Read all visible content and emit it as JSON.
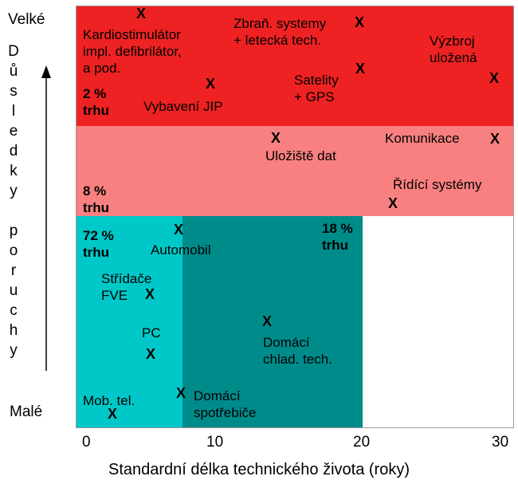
{
  "y_axis": {
    "top_label": "Velké",
    "bottom_label": "Malé",
    "vertical_letters": [
      "D",
      "ů",
      "s",
      "l",
      "e",
      "d",
      "k",
      "y",
      "",
      "p",
      "o",
      "r",
      "u",
      "c",
      "h",
      "y"
    ]
  },
  "x_axis": {
    "title": "Standardní délka technického života (roky)",
    "ticks": [
      "0",
      "10",
      "20",
      "30"
    ]
  },
  "zones": {
    "high": {
      "share": "2 %\ntrhu",
      "color": "#ee2222"
    },
    "medium": {
      "share": "8 %\ntrhu",
      "color": "#f88080"
    },
    "low_short": {
      "share": "72 %\ntrhu",
      "color": "#00c8c8"
    },
    "low_long": {
      "share": "18 %\ntrhu",
      "color": "#008b8b"
    }
  },
  "items": {
    "kardio": "Kardiostimulátor\nimpl. defibrilátor,\na pod.",
    "jip": "Vybavení JIP",
    "zbrane": "Zbraň. systemy\n+ letecká tech.",
    "satelity": "Satelity\n+ GPS",
    "vyzbroj": "Výzbroj\nuložená",
    "uloziste": "Uložiště dat",
    "komunikace": "Komunikace",
    "ridici": "Řídící systémy",
    "automobil": "Automobil",
    "stridace": "Střídače\nFVE",
    "pc": "PC",
    "chlad": "Domácí\nchlad. tech.",
    "mob": "Mob. tel.",
    "spotrebice": "Domácí\nspotřebiče"
  },
  "marker_symbol": "X"
}
